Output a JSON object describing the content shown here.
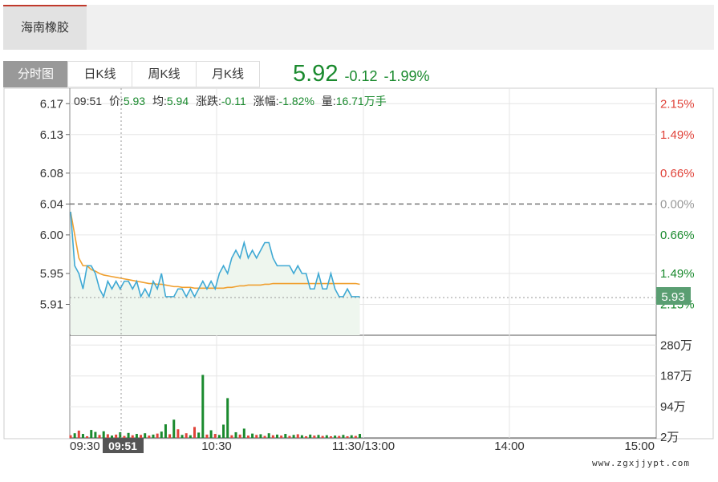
{
  "header": {
    "stock_name": "海南橡胶"
  },
  "tabs": [
    {
      "label": "分时图",
      "active": true
    },
    {
      "label": "日K线",
      "active": false
    },
    {
      "label": "周K线",
      "active": false
    },
    {
      "label": "月K线",
      "active": false
    }
  ],
  "quote": {
    "price": "5.92",
    "change": "-0.12",
    "change_pct": "-1.99%"
  },
  "info": {
    "time": "09:51",
    "price_label": "价:",
    "price": "5.93",
    "avg_label": "均:",
    "avg": "5.94",
    "change_label": "涨跌:",
    "change": "-0.11",
    "pct_label": "涨幅:",
    "pct": "-1.82%",
    "vol_label": "量:",
    "vol": "16.71万手"
  },
  "cursor": {
    "time_label": "09:51",
    "price_label": "5.93"
  },
  "watermark": "www.zgxjjypt.com",
  "colors": {
    "up": "#e0433a",
    "down": "#1a8a2e",
    "price_line": "#3fa9d4",
    "avg_line": "#f0a030",
    "area": "#eef6ee"
  },
  "chart_data": {
    "type": "line",
    "prev_close": 6.04,
    "ylim": [
      5.87,
      6.19
    ],
    "left_ticks": [
      6.17,
      6.13,
      6.08,
      6.04,
      6.0,
      5.95,
      5.91
    ],
    "right_ticks": [
      "2.15%",
      "1.49%",
      "0.66%",
      "0.00%",
      "0.66%",
      "1.49%",
      "2.15%"
    ],
    "x_ticks": [
      "09:30",
      "10:30",
      "11:30/13:00",
      "14:00",
      "15:00"
    ],
    "vol_ticks": [
      "280万",
      "187万",
      "94万",
      "2万"
    ],
    "vol_max": 300,
    "price": [
      6.03,
      5.96,
      5.95,
      5.93,
      5.96,
      5.96,
      5.95,
      5.93,
      5.92,
      5.94,
      5.93,
      5.94,
      5.93,
      5.94,
      5.94,
      5.93,
      5.94,
      5.92,
      5.93,
      5.92,
      5.94,
      5.93,
      5.95,
      5.92,
      5.92,
      5.92,
      5.93,
      5.93,
      5.92,
      5.93,
      5.92,
      5.93,
      5.94,
      5.93,
      5.94,
      5.93,
      5.95,
      5.96,
      5.95,
      5.97,
      5.98,
      5.97,
      5.99,
      5.97,
      5.98,
      5.97,
      5.98,
      5.99,
      5.99,
      5.97,
      5.96,
      5.96,
      5.96,
      5.96,
      5.95,
      5.96,
      5.95,
      5.95,
      5.93,
      5.93,
      5.95,
      5.93,
      5.93,
      5.95,
      5.93,
      5.92,
      5.92,
      5.93,
      5.92,
      5.92,
      5.92
    ],
    "avg": [
      6.03,
      6.0,
      5.97,
      5.96,
      5.96,
      5.955,
      5.953,
      5.95,
      5.948,
      5.947,
      5.946,
      5.945,
      5.944,
      5.943,
      5.942,
      5.941,
      5.94,
      5.939,
      5.938,
      5.937,
      5.937,
      5.936,
      5.936,
      5.935,
      5.934,
      5.933,
      5.933,
      5.932,
      5.932,
      5.932,
      5.931,
      5.931,
      5.931,
      5.931,
      5.931,
      5.931,
      5.931,
      5.931,
      5.932,
      5.932,
      5.933,
      5.934,
      5.934,
      5.935,
      5.935,
      5.935,
      5.935,
      5.936,
      5.936,
      5.937,
      5.937,
      5.937,
      5.937,
      5.937,
      5.937,
      5.937,
      5.937,
      5.937,
      5.937,
      5.937,
      5.937,
      5.937,
      5.937,
      5.937,
      5.937,
      5.937,
      5.937,
      5.937,
      5.937,
      5.937,
      5.936
    ],
    "volume": [
      8,
      14,
      22,
      12,
      5,
      24,
      18,
      9,
      20,
      11,
      7,
      10,
      17,
      6,
      15,
      8,
      12,
      9,
      14,
      7,
      10,
      13,
      19,
      41,
      11,
      55,
      26,
      9,
      14,
      8,
      33,
      16,
      190,
      10,
      23,
      12,
      9,
      40,
      120,
      8,
      17,
      10,
      28,
      7,
      13,
      9,
      11,
      6,
      14,
      8,
      10,
      7,
      12,
      6,
      9,
      11,
      8,
      5,
      10,
      7,
      9,
      6,
      8,
      5,
      7,
      6,
      9,
      5,
      8,
      6,
      12
    ],
    "volume_up": [
      true,
      false,
      true,
      false,
      true,
      false,
      false,
      true,
      false,
      true,
      false,
      true,
      false,
      true,
      false,
      true,
      false,
      true,
      false,
      true,
      false,
      true,
      false,
      false,
      true,
      false,
      true,
      false,
      true,
      false,
      true,
      false,
      false,
      true,
      false,
      true,
      false,
      false,
      false,
      true,
      false,
      true,
      false,
      true,
      false,
      true,
      false,
      true,
      false,
      true,
      false,
      true,
      false,
      true,
      false,
      true,
      false,
      true,
      false,
      true,
      false,
      true,
      false,
      true,
      false,
      true,
      false,
      true,
      false,
      true,
      false
    ]
  }
}
